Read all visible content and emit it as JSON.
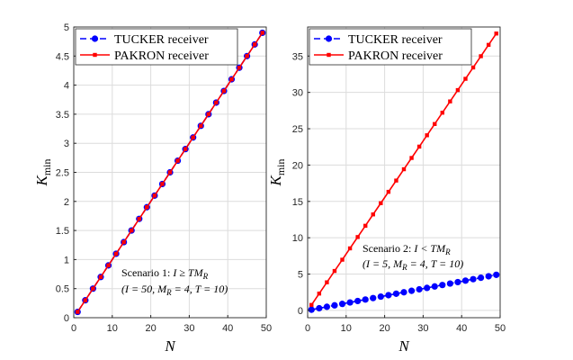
{
  "chart_data": [
    {
      "type": "line",
      "xlabel": "N",
      "ylabel": "K_min",
      "ylabel_main": "K",
      "ylabel_sub": "min",
      "xlim": [
        0,
        50
      ],
      "ylim": [
        0,
        5
      ],
      "xticks": [
        0,
        10,
        20,
        30,
        40,
        50
      ],
      "xtick_labels": [
        "0",
        "10",
        "20",
        "30",
        "40",
        "50"
      ],
      "yticks": [
        0,
        0.5,
        1,
        1.5,
        2,
        2.5,
        3,
        3.5,
        4,
        4.5,
        5
      ],
      "ytick_labels": [
        "0",
        "0.5",
        "1",
        "1.5",
        "2",
        "2.5",
        "3",
        "3.5",
        "4",
        "4.5",
        "5"
      ],
      "grid": true,
      "legend_position": "top-left",
      "annotation": {
        "line1_prefix": "Scenario 1:",
        "line1_condition": "I ≥ TM",
        "line1_sub": "R",
        "line2_a": "(I = 50, M",
        "line2_sub": "R",
        "line2_b": " = 4, T = 10)"
      },
      "x": [
        1,
        3,
        5,
        7,
        9,
        11,
        13,
        15,
        17,
        19,
        21,
        23,
        25,
        27,
        29,
        31,
        33,
        35,
        37,
        39,
        41,
        43,
        45,
        47,
        49
      ],
      "series": [
        {
          "name": "TUCKER receiver",
          "color": "#0000ff",
          "style": "dashed",
          "marker": "circle",
          "values": [
            0.1,
            0.3,
            0.5,
            0.7,
            0.9,
            1.1,
            1.3,
            1.5,
            1.7,
            1.9,
            2.1,
            2.3,
            2.5,
            2.7,
            2.9,
            3.1,
            3.3,
            3.5,
            3.7,
            3.9,
            4.1,
            4.3,
            4.5,
            4.7,
            4.9
          ]
        },
        {
          "name": "PAKRON receiver",
          "color": "#ff0000",
          "style": "solid",
          "marker": "square",
          "values": [
            0.1,
            0.3,
            0.5,
            0.7,
            0.9,
            1.1,
            1.3,
            1.5,
            1.7,
            1.9,
            2.1,
            2.3,
            2.5,
            2.7,
            2.9,
            3.1,
            3.3,
            3.5,
            3.7,
            3.9,
            4.1,
            4.3,
            4.5,
            4.7,
            4.9
          ]
        }
      ]
    },
    {
      "type": "line",
      "xlabel": "N",
      "ylabel": "K_min",
      "ylabel_main": "K",
      "ylabel_sub": "min",
      "xlim": [
        0,
        50
      ],
      "ylim": [
        -1,
        39
      ],
      "xticks": [
        0,
        10,
        20,
        30,
        40,
        50
      ],
      "xtick_labels": [
        "0",
        "10",
        "20",
        "30",
        "40",
        "50"
      ],
      "yticks": [
        0,
        5,
        10,
        15,
        20,
        25,
        30,
        35
      ],
      "ytick_labels": [
        "0",
        "5",
        "10",
        "15",
        "20",
        "25",
        "30",
        "35"
      ],
      "grid": true,
      "legend_position": "top-left",
      "annotation": {
        "line1_prefix": "Scenario 2:",
        "line1_condition": "I < TM",
        "line1_sub": "R",
        "line2_a": "(I = 5, M",
        "line2_sub": "R",
        "line2_b": " = 4, T = 10)"
      },
      "x": [
        1,
        3,
        5,
        7,
        9,
        11,
        13,
        15,
        17,
        19,
        21,
        23,
        25,
        27,
        29,
        31,
        33,
        35,
        37,
        39,
        41,
        43,
        45,
        47,
        49
      ],
      "series": [
        {
          "name": "TUCKER receiver",
          "color": "#0000ff",
          "style": "dashed",
          "marker": "circle",
          "values": [
            0.1,
            0.3,
            0.5,
            0.7,
            0.9,
            1.1,
            1.3,
            1.5,
            1.7,
            1.9,
            2.1,
            2.3,
            2.5,
            2.7,
            2.9,
            3.1,
            3.3,
            3.5,
            3.7,
            3.9,
            4.1,
            4.3,
            4.5,
            4.7,
            4.9
          ]
        },
        {
          "name": "PAKRON receiver",
          "color": "#ff0000",
          "style": "solid",
          "marker": "square",
          "values": [
            0.76,
            2.32,
            3.87,
            5.43,
            6.98,
            8.54,
            10.1,
            11.65,
            13.21,
            14.76,
            16.32,
            17.87,
            19.43,
            20.98,
            22.54,
            24.1,
            25.65,
            27.21,
            28.76,
            30.32,
            31.87,
            33.43,
            34.98,
            36.54,
            38.1
          ]
        }
      ]
    }
  ]
}
